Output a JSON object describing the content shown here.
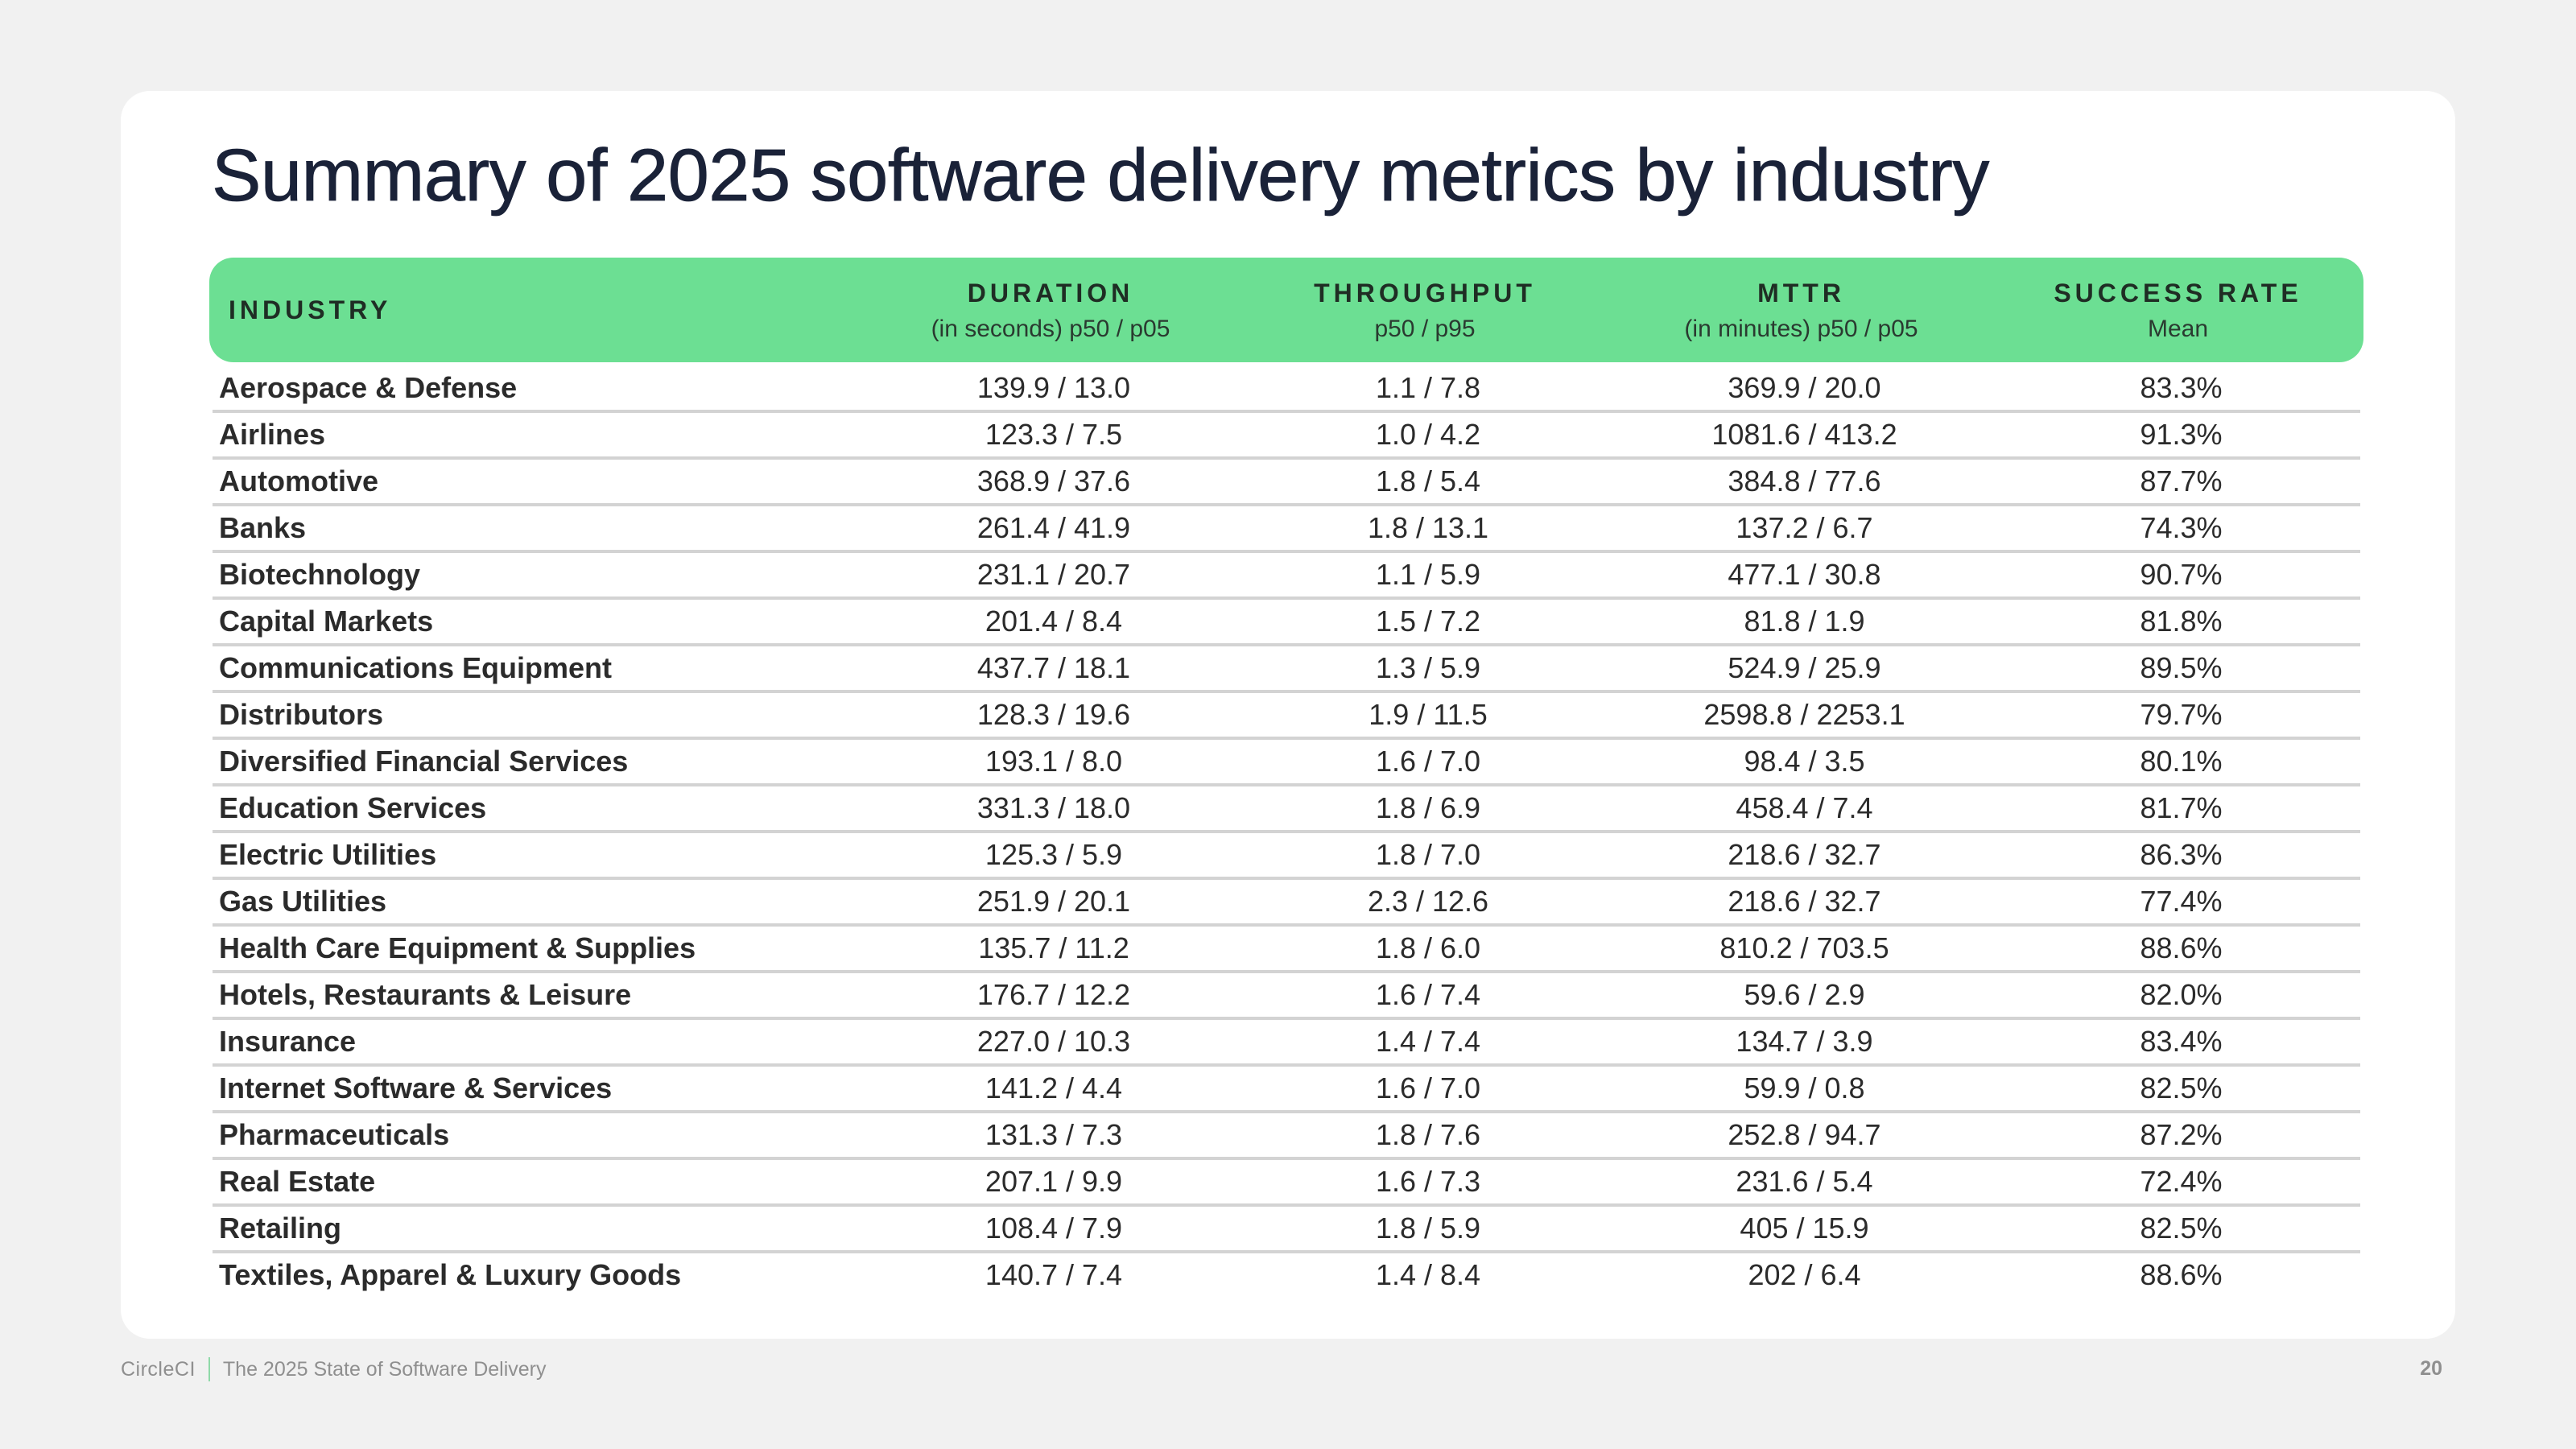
{
  "title": "Summary of 2025 software delivery metrics by industry",
  "colors": {
    "background": "#f1f1f1",
    "card": "#ffffff",
    "header_green": "#6cdf93",
    "title_text": "#1a2238",
    "divider": "#d3d3d3",
    "footer_text": "#8f8f8f",
    "footer_separator": "#8fd9a8"
  },
  "table": {
    "headers": [
      {
        "label": "INDUSTRY",
        "sub": ""
      },
      {
        "label": "DURATION",
        "sub": "(in seconds) p50 / p05"
      },
      {
        "label": "THROUGHPUT",
        "sub": "p50 / p95"
      },
      {
        "label": "MTTR",
        "sub": "(in minutes) p50 / p05"
      },
      {
        "label": "SUCCESS RATE",
        "sub": "Mean"
      }
    ],
    "rows": [
      {
        "industry": "Aerospace & Defense",
        "duration": "139.9 / 13.0",
        "throughput": "1.1 / 7.8",
        "mttr": "369.9 / 20.0",
        "success_rate": "83.3%"
      },
      {
        "industry": "Airlines",
        "duration": "123.3 / 7.5",
        "throughput": "1.0 / 4.2",
        "mttr": "1081.6 / 413.2",
        "success_rate": "91.3%"
      },
      {
        "industry": "Automotive",
        "duration": "368.9 / 37.6",
        "throughput": "1.8 / 5.4",
        "mttr": "384.8 / 77.6",
        "success_rate": "87.7%"
      },
      {
        "industry": "Banks",
        "duration": "261.4 / 41.9",
        "throughput": "1.8 / 13.1",
        "mttr": "137.2 / 6.7",
        "success_rate": "74.3%"
      },
      {
        "industry": "Biotechnology",
        "duration": "231.1 / 20.7",
        "throughput": "1.1 / 5.9",
        "mttr": "477.1 / 30.8",
        "success_rate": "90.7%"
      },
      {
        "industry": "Capital Markets",
        "duration": "201.4 / 8.4",
        "throughput": "1.5 / 7.2",
        "mttr": "81.8 / 1.9",
        "success_rate": "81.8%"
      },
      {
        "industry": "Communications Equipment",
        "duration": "437.7 / 18.1",
        "throughput": "1.3 / 5.9",
        "mttr": "524.9 / 25.9",
        "success_rate": "89.5%"
      },
      {
        "industry": "Distributors",
        "duration": "128.3 / 19.6",
        "throughput": "1.9 / 11.5",
        "mttr": "2598.8 / 2253.1",
        "success_rate": "79.7%"
      },
      {
        "industry": "Diversified Financial Services",
        "duration": "193.1 / 8.0",
        "throughput": "1.6 / 7.0",
        "mttr": "98.4 / 3.5",
        "success_rate": "80.1%"
      },
      {
        "industry": "Education Services",
        "duration": "331.3 / 18.0",
        "throughput": "1.8 / 6.9",
        "mttr": "458.4 / 7.4",
        "success_rate": "81.7%"
      },
      {
        "industry": "Electric Utilities",
        "duration": "125.3 / 5.9",
        "throughput": "1.8 / 7.0",
        "mttr": "218.6 / 32.7",
        "success_rate": "86.3%"
      },
      {
        "industry": "Gas Utilities",
        "duration": "251.9 / 20.1",
        "throughput": "2.3 / 12.6",
        "mttr": "218.6 / 32.7",
        "success_rate": "77.4%"
      },
      {
        "industry": "Health Care Equipment & Supplies",
        "duration": "135.7 / 11.2",
        "throughput": "1.8 / 6.0",
        "mttr": "810.2 / 703.5",
        "success_rate": "88.6%"
      },
      {
        "industry": "Hotels, Restaurants & Leisure",
        "duration": "176.7 / 12.2",
        "throughput": "1.6 / 7.4",
        "mttr": "59.6 / 2.9",
        "success_rate": "82.0%"
      },
      {
        "industry": "Insurance",
        "duration": "227.0 / 10.3",
        "throughput": "1.4 / 7.4",
        "mttr": "134.7 / 3.9",
        "success_rate": "83.4%"
      },
      {
        "industry": "Internet Software & Services",
        "duration": "141.2 / 4.4",
        "throughput": "1.6 / 7.0",
        "mttr": "59.9 / 0.8",
        "success_rate": "82.5%"
      },
      {
        "industry": "Pharmaceuticals",
        "duration": "131.3 / 7.3",
        "throughput": "1.8 / 7.6",
        "mttr": "252.8 / 94.7",
        "success_rate": "87.2%"
      },
      {
        "industry": "Real Estate",
        "duration": "207.1 / 9.9",
        "throughput": "1.6 / 7.3",
        "mttr": "231.6 / 5.4",
        "success_rate": "72.4%"
      },
      {
        "industry": "Retailing",
        "duration": "108.4 / 7.9",
        "throughput": "1.8 / 5.9",
        "mttr": "405 / 15.9",
        "success_rate": "82.5%"
      },
      {
        "industry": "Textiles, Apparel & Luxury Goods",
        "duration": "140.7 / 7.4",
        "throughput": "1.4 / 8.4",
        "mttr": "202 / 6.4",
        "success_rate": "88.6%"
      }
    ]
  },
  "footer": {
    "brand": "CircleCI",
    "report_title": "The 2025 State of Software Delivery",
    "page_number": "20"
  }
}
